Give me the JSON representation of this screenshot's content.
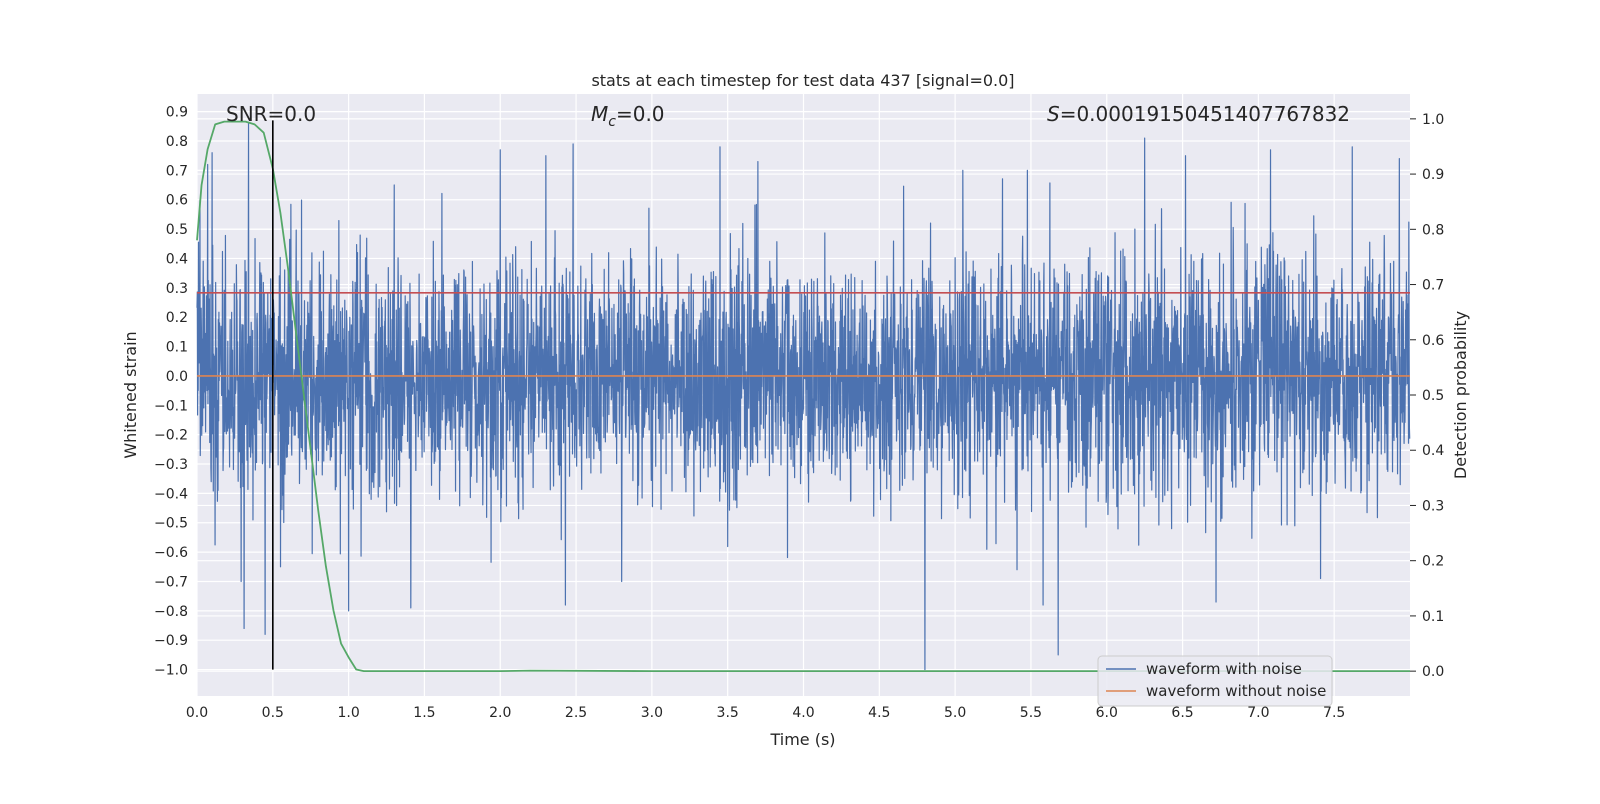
{
  "chart_data": {
    "type": "line",
    "title": "stats at each timestep for test data 437 [signal=0.0]",
    "xlabel": "Time (s)",
    "ylabel": "Whitened strain",
    "y2label": "Detection probability",
    "xlim": [
      0.0,
      8.0
    ],
    "ylim": [
      -1.09,
      0.96
    ],
    "y2lim": [
      -0.045,
      1.045
    ],
    "x_ticks": [
      "0.0",
      "0.5",
      "1.0",
      "1.5",
      "2.0",
      "2.5",
      "3.0",
      "3.5",
      "4.0",
      "4.5",
      "5.0",
      "5.5",
      "6.0",
      "6.5",
      "7.0",
      "7.5"
    ],
    "y_ticks": [
      "0.9",
      "0.8",
      "0.7",
      "0.6",
      "0.5",
      "0.4",
      "0.3",
      "0.2",
      "0.1",
      "0.0",
      "−0.1",
      "−0.2",
      "−0.3",
      "−0.4",
      "−0.5",
      "−0.6",
      "−0.7",
      "−0.8",
      "−0.9",
      "−1.0"
    ],
    "y2_ticks": [
      "1.0",
      "0.9",
      "0.8",
      "0.7",
      "0.6",
      "0.5",
      "0.4",
      "0.3",
      "0.2",
      "0.1",
      "0.0"
    ],
    "annotations": {
      "snr": "SNR=0.0",
      "mc_symbol": "M",
      "mc_sub": "c",
      "mc_value": "=0.0",
      "s_symbol": "S",
      "s_value": "=0.00019150451407767832"
    },
    "grid": true,
    "legend_position": "lower-right",
    "series": [
      {
        "name": "waveform with noise",
        "color": "#4c72b0",
        "description_kind": "noise",
        "sample_rate_hz": 512,
        "duration_s": 8.0,
        "spike_peaks": [
          {
            "x": 0.02,
            "y": 0.6
          },
          {
            "x": 0.07,
            "y": 0.72
          },
          {
            "x": 0.1,
            "y": 0.76
          },
          {
            "x": 0.34,
            "y": 0.86
          },
          {
            "x": 0.45,
            "y": 0.62
          },
          {
            "x": 1.3,
            "y": 0.65
          },
          {
            "x": 2.0,
            "y": 0.77
          },
          {
            "x": 2.3,
            "y": 0.75
          },
          {
            "x": 2.48,
            "y": 0.79
          },
          {
            "x": 3.45,
            "y": 0.78
          },
          {
            "x": 3.7,
            "y": 0.73
          },
          {
            "x": 5.05,
            "y": 0.7
          },
          {
            "x": 6.25,
            "y": 0.81
          },
          {
            "x": 6.52,
            "y": 0.75
          },
          {
            "x": 7.08,
            "y": 0.77
          },
          {
            "x": 7.62,
            "y": 0.78
          },
          {
            "x": 7.93,
            "y": 0.74
          },
          {
            "x": 0.31,
            "y": -0.86
          },
          {
            "x": 0.45,
            "y": -0.88
          },
          {
            "x": 0.55,
            "y": -0.65
          },
          {
            "x": 1.0,
            "y": -0.8
          },
          {
            "x": 1.41,
            "y": -0.79
          },
          {
            "x": 2.43,
            "y": -0.78
          },
          {
            "x": 4.8,
            "y": -1.0
          },
          {
            "x": 5.58,
            "y": -0.78
          },
          {
            "x": 5.68,
            "y": -0.95
          },
          {
            "x": 6.72,
            "y": -0.77
          },
          {
            "x": 7.41,
            "y": -0.69
          }
        ]
      },
      {
        "name": "waveform without noise",
        "color": "#dd8452",
        "x": [
          0.0,
          8.0
        ],
        "y": [
          0.0,
          0.0
        ]
      },
      {
        "name": "",
        "axis": "right",
        "color": "#55a868",
        "x": [
          0.0,
          0.03,
          0.07,
          0.12,
          0.18,
          0.25,
          0.32,
          0.38,
          0.44,
          0.5,
          0.55,
          0.6,
          0.65,
          0.7,
          0.75,
          0.8,
          0.85,
          0.9,
          0.95,
          1.0,
          1.05,
          1.1,
          1.2,
          2.0,
          2.2,
          3.0,
          5.0,
          8.0
        ],
        "y": [
          0.78,
          0.88,
          0.945,
          0.99,
          0.995,
          0.995,
          0.995,
          0.99,
          0.975,
          0.91,
          0.83,
          0.73,
          0.62,
          0.51,
          0.4,
          0.29,
          0.19,
          0.11,
          0.05,
          0.025,
          0.003,
          0.0,
          0.0,
          0.0,
          0.001,
          0.0,
          0.0,
          0.0
        ]
      }
    ],
    "threshold_line": {
      "color": "#c44e52",
      "y": 0.685
    },
    "marker_line": {
      "color": "#000000",
      "x": 0.5,
      "y_from": -1.0,
      "y_to": 0.87
    }
  }
}
